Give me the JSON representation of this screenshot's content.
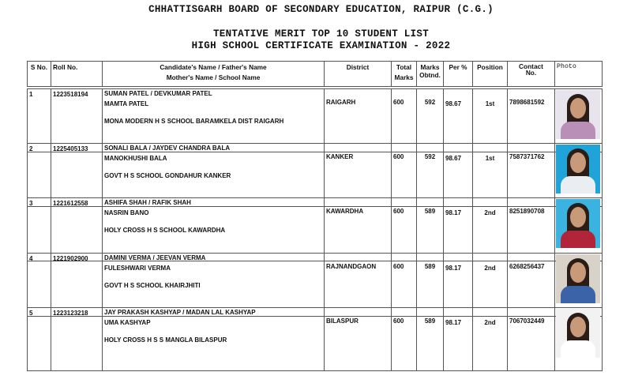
{
  "header": {
    "board": "CHHATTISGARH BOARD OF SECONDARY EDUCATION, RAIPUR (C.G.)",
    "title": "TENTATIVE MERIT TOP 10 STUDENT LIST",
    "exam": "HIGH SCHOOL CERTIFICATE EXAMINATION - 2022"
  },
  "columns": {
    "sno": "S No.",
    "roll": "Roll No.",
    "name1": "Candidate's Name / Father's Name",
    "name2": "Mother's Name / School Name",
    "district": "District",
    "total1": "Total",
    "total2": "Marks",
    "marks1": "Marks",
    "marks2": "Obtnd.",
    "per": "Per %",
    "position": "Position",
    "contact1": "Contact",
    "contact2": "No.",
    "photo": "Photo"
  },
  "rows": [
    {
      "sno": "1",
      "roll": "1223518194",
      "name": "SUMAN PATEL / DEVKUMAR PATEL",
      "mother": "MAMTA PATEL",
      "school": "MONA MODERN H S SCHOOL BARAMKELA DIST RAIGARH",
      "district": "RAIGARH",
      "total": "600",
      "marks": "592",
      "per": "98.67",
      "position": "1st",
      "contact": "7898681592",
      "photo_bg": "#e8e4ee",
      "photo_body": "#b98fb8"
    },
    {
      "sno": "2",
      "roll": "1225405133",
      "name": "SONALI BALA / JAYDEV CHANDRA BALA",
      "mother": "MANOKHUSHI BALA",
      "school": "GOVT H S SCHOOL GONDAHUR KANKER",
      "district": "KANKER",
      "total": "600",
      "marks": "592",
      "per": "98.67",
      "position": "1st",
      "contact": "7587371762",
      "photo_bg": "#1fa3d8",
      "photo_body": "#e9eef2"
    },
    {
      "sno": "3",
      "roll": "1221612558",
      "name": "ASHIFA SHAH / RAFIK SHAH",
      "mother": "NASRIN BANO",
      "school": "HOLY CROSS H S SCHOOL KAWARDHA",
      "district": "KAWARDHA",
      "total": "600",
      "marks": "589",
      "per": "98.17",
      "position": "2nd",
      "contact": "8251890708",
      "photo_bg": "#3bb3e0",
      "photo_body": "#b2243a"
    },
    {
      "sno": "4",
      "roll": "1221902900",
      "name": "DAMINI VERMA / JEEVAN VERMA",
      "mother": "FULESHWARI VERMA",
      "school": "GOVT H S SCHOOL KHAIRJHITI",
      "district": "RAJNANDGAON",
      "total": "600",
      "marks": "589",
      "per": "98.17",
      "position": "2nd",
      "contact": "6268256437",
      "photo_bg": "#d9d2c8",
      "photo_body": "#3b63a8"
    },
    {
      "sno": "5",
      "roll": "1223123218",
      "name": "JAY PRAKASH KASHYAP / MADAN LAL KASHYAP",
      "mother": "UMA KASHYAP",
      "school": "HOLY CROSS H S S MANGLA BILASPUR",
      "district": "BILASPUR",
      "total": "600",
      "marks": "589",
      "per": "98.17",
      "position": "2nd",
      "contact": "7067032449",
      "photo_bg": "#f2f2f2",
      "photo_body": "#ffffff"
    }
  ]
}
